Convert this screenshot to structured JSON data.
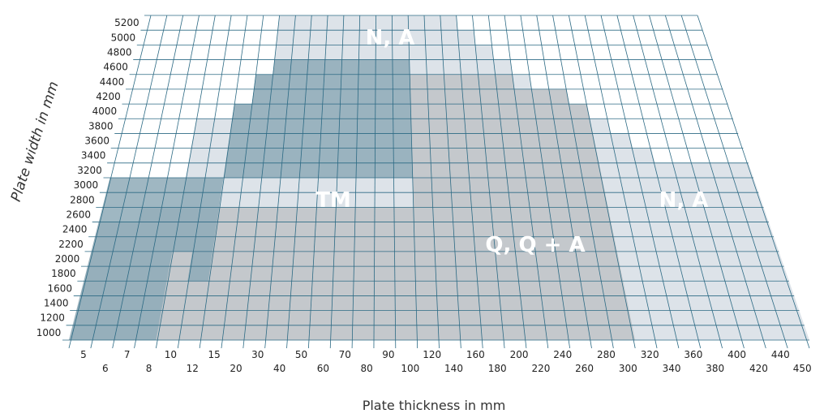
{
  "chart_data": {
    "type": "area",
    "xlabel": "Plate thickness in mm",
    "ylabel": "Plate width in mm",
    "x_ticks_top": [
      "5",
      "7",
      "10",
      "15",
      "30",
      "50",
      "70",
      "90",
      "120",
      "160",
      "200",
      "240",
      "280",
      "320",
      "360",
      "400",
      "440"
    ],
    "x_ticks_bottom": [
      "6",
      "8",
      "12",
      "20",
      "40",
      "60",
      "80",
      "100",
      "140",
      "180",
      "220",
      "260",
      "300",
      "340",
      "380",
      "420",
      "450"
    ],
    "y_ticks": [
      "1000",
      "1200",
      "1400",
      "1600",
      "1800",
      "2000",
      "2200",
      "2400",
      "2600",
      "2800",
      "3000",
      "3200",
      "3400",
      "3600",
      "3800",
      "4000",
      "4200",
      "4400",
      "4600",
      "4800",
      "5000",
      "5200"
    ],
    "ylim": [
      1000,
      5200
    ],
    "regions": [
      {
        "name": "N, A",
        "color": "#dde3e9",
        "max_width_by_thickness": [
          [
            "5",
            2400
          ],
          [
            "7",
            2600
          ],
          [
            "10",
            3800
          ],
          [
            "15",
            4000
          ],
          [
            "20",
            4400
          ],
          [
            "30",
            5200
          ],
          [
            "160",
            5200
          ],
          [
            "180",
            5000
          ],
          [
            "200",
            4800
          ],
          [
            "220",
            4600
          ],
          [
            "240",
            4400
          ],
          [
            "260",
            4200
          ],
          [
            "280",
            4200
          ],
          [
            "300",
            4000
          ],
          [
            "320",
            3800
          ],
          [
            "340",
            3600
          ],
          [
            "360",
            3400
          ],
          [
            "380",
            3200
          ],
          [
            "450",
            3200
          ]
        ]
      },
      {
        "name": "Q, Q+A",
        "color": "#c4c8cc",
        "max_width_by_thickness": [
          [
            "5",
            2400
          ],
          [
            "7",
            2600
          ],
          [
            "120",
            4400
          ],
          [
            "160",
            4400
          ],
          [
            "200",
            4400
          ],
          [
            "240",
            4200
          ],
          [
            "260",
            4200
          ],
          [
            "300",
            4000
          ]
        ]
      },
      {
        "name": "TM",
        "color": "#8eaab7",
        "max_width_by_thickness": [
          [
            "10",
            2000
          ],
          [
            "12",
            1600
          ],
          [
            "15",
            4000
          ],
          [
            "20",
            4400
          ],
          [
            "30",
            4600
          ],
          [
            "110",
            4600
          ],
          [
            "120",
            3000
          ],
          [
            "150",
            3000
          ]
        ]
      }
    ],
    "labels": [
      "N, A",
      "TM",
      "Q, Q + A",
      "N, A"
    ],
    "grid": true
  }
}
